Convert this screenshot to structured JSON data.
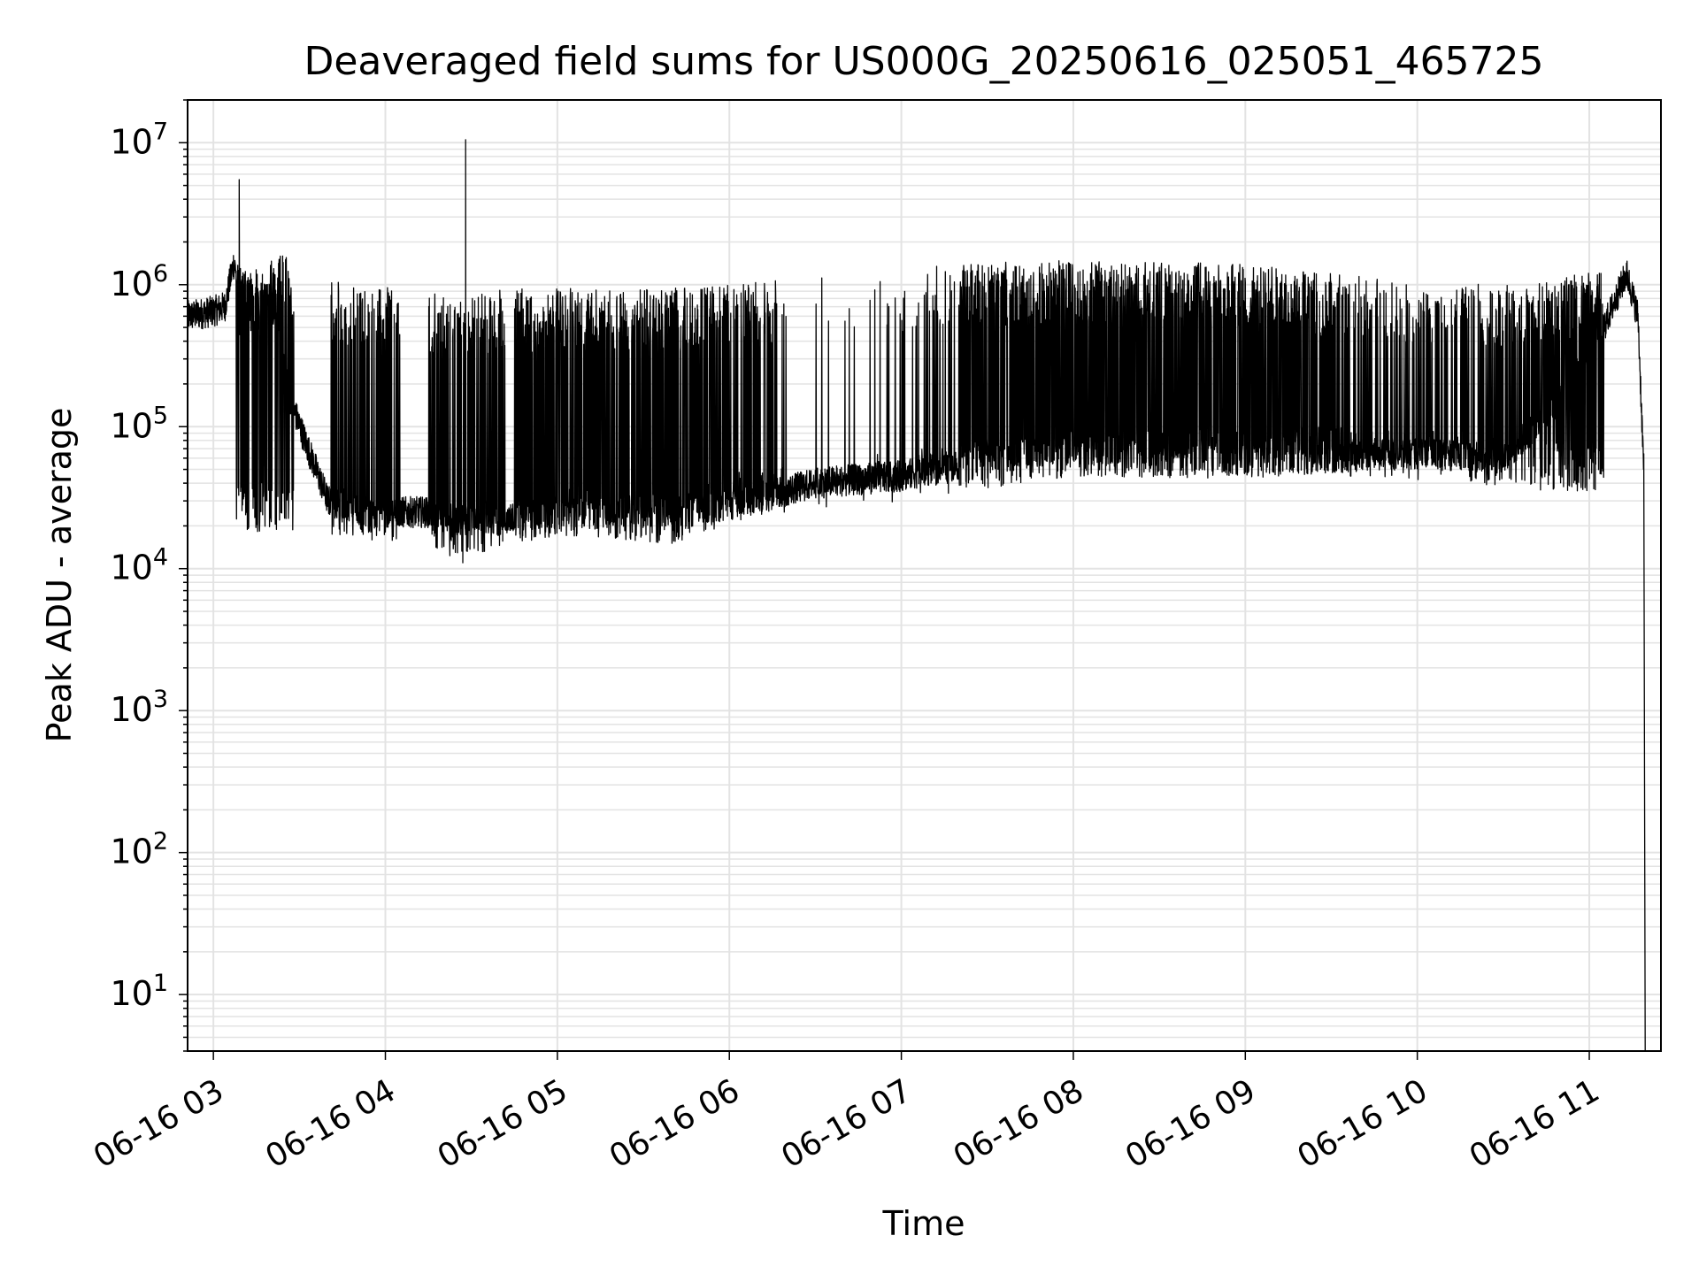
{
  "chart_data": {
    "type": "line",
    "title": "Deaveraged field sums for US000G_20250616_025051_465725",
    "xlabel": "Time",
    "ylabel": "Peak ADU - average",
    "yscale": "log",
    "ylim": [
      4,
      20000000
    ],
    "xlim": [
      "2025-06-16T02:51:00",
      "2025-06-16T11:25:00"
    ],
    "grid": true,
    "x_ticks": [
      {
        "t": "2025-06-16T03:00:00",
        "label": "06-16 03"
      },
      {
        "t": "2025-06-16T04:00:00",
        "label": "06-16 04"
      },
      {
        "t": "2025-06-16T05:00:00",
        "label": "06-16 05"
      },
      {
        "t": "2025-06-16T06:00:00",
        "label": "06-16 06"
      },
      {
        "t": "2025-06-16T07:00:00",
        "label": "06-16 07"
      },
      {
        "t": "2025-06-16T08:00:00",
        "label": "06-16 08"
      },
      {
        "t": "2025-06-16T09:00:00",
        "label": "06-16 09"
      },
      {
        "t": "2025-06-16T10:00:00",
        "label": "06-16 10"
      },
      {
        "t": "2025-06-16T11:00:00",
        "label": "06-16 11"
      }
    ],
    "y_ticks": [
      {
        "value": 10,
        "base": "10",
        "exp": "1"
      },
      {
        "value": 100,
        "base": "10",
        "exp": "2"
      },
      {
        "value": 1000,
        "base": "10",
        "exp": "3"
      },
      {
        "value": 10000,
        "base": "10",
        "exp": "4"
      },
      {
        "value": 100000,
        "base": "10",
        "exp": "5"
      },
      {
        "value": 1000000,
        "base": "10",
        "exp": "6"
      },
      {
        "value": 10000000,
        "base": "10",
        "exp": "7"
      }
    ],
    "series": [
      {
        "color": "#000000",
        "baseline": [
          {
            "t": "2025-06-16T02:51:00",
            "y": 600000
          },
          {
            "t": "2025-06-16T03:00:00",
            "y": 650000
          },
          {
            "t": "2025-06-16T03:04:00",
            "y": 700000
          },
          {
            "t": "2025-06-16T03:07:00",
            "y": 1400000
          },
          {
            "t": "2025-06-16T03:12:00",
            "y": 900000
          },
          {
            "t": "2025-06-16T03:20:00",
            "y": 800000
          },
          {
            "t": "2025-06-16T03:27:00",
            "y": 150000
          },
          {
            "t": "2025-06-16T03:33:00",
            "y": 70000
          },
          {
            "t": "2025-06-16T03:40:00",
            "y": 30000
          },
          {
            "t": "2025-06-16T03:55:00",
            "y": 25000
          },
          {
            "t": "2025-06-16T04:15:00",
            "y": 25000
          },
          {
            "t": "2025-06-16T04:25:00",
            "y": 22000
          },
          {
            "t": "2025-06-16T04:40:00",
            "y": 22000
          },
          {
            "t": "2025-06-16T05:00:00",
            "y": 25000
          },
          {
            "t": "2025-06-16T05:30:00",
            "y": 25000
          },
          {
            "t": "2025-06-16T06:00:00",
            "y": 28000
          },
          {
            "t": "2025-06-16T06:30:00",
            "y": 40000
          },
          {
            "t": "2025-06-16T07:00:00",
            "y": 45000
          },
          {
            "t": "2025-06-16T07:30:00",
            "y": 60000
          },
          {
            "t": "2025-06-16T08:00:00",
            "y": 70000
          },
          {
            "t": "2025-06-16T08:40:00",
            "y": 60000
          },
          {
            "t": "2025-06-16T09:30:00",
            "y": 60000
          },
          {
            "t": "2025-06-16T10:00:00",
            "y": 65000
          },
          {
            "t": "2025-06-16T10:30:00",
            "y": 60000
          },
          {
            "t": "2025-06-16T10:50:00",
            "y": 150000
          },
          {
            "t": "2025-06-16T11:05:00",
            "y": 500000
          },
          {
            "t": "2025-06-16T11:13:00",
            "y": 1200000
          },
          {
            "t": "2025-06-16T11:17:00",
            "y": 600000
          },
          {
            "t": "2025-06-16T11:19:00",
            "y": 50000
          },
          {
            "t": "2025-06-16T11:19:30",
            "y": 4
          }
        ],
        "peak_band": [
          {
            "t": "2025-06-16T03:00:00",
            "y": 900000
          },
          {
            "t": "2025-06-16T03:25:00",
            "y": 1700000
          },
          {
            "t": "2025-06-16T03:40:00",
            "y": 1100000
          },
          {
            "t": "2025-06-16T04:15:00",
            "y": 900000
          },
          {
            "t": "2025-06-16T05:00:00",
            "y": 950000
          },
          {
            "t": "2025-06-16T05:50:00",
            "y": 950000
          },
          {
            "t": "2025-06-16T06:30:00",
            "y": 1200000
          },
          {
            "t": "2025-06-16T07:20:00",
            "y": 1400000
          },
          {
            "t": "2025-06-16T08:00:00",
            "y": 1500000
          },
          {
            "t": "2025-06-16T09:00:00",
            "y": 1400000
          },
          {
            "t": "2025-06-16T09:30:00",
            "y": 1200000
          },
          {
            "t": "2025-06-16T10:30:00",
            "y": 1000000
          },
          {
            "t": "2025-06-16T11:10:00",
            "y": 1300000
          }
        ],
        "low_band": [
          {
            "t": "2025-06-16T03:35:00",
            "y": 18000
          },
          {
            "t": "2025-06-16T04:10:00",
            "y": 14000
          },
          {
            "t": "2025-06-16T04:25:00",
            "y": 12000
          },
          {
            "t": "2025-06-16T05:00:00",
            "y": 17000
          },
          {
            "t": "2025-06-16T05:40:00",
            "y": 15000
          },
          {
            "t": "2025-06-16T06:05:00",
            "y": 22000
          },
          {
            "t": "2025-06-16T07:00:00",
            "y": 30000
          },
          {
            "t": "2025-06-16T08:00:00",
            "y": 45000
          },
          {
            "t": "2025-06-16T08:40:00",
            "y": 43000
          },
          {
            "t": "2025-06-16T09:30:00",
            "y": 45000
          },
          {
            "t": "2025-06-16T10:20:00",
            "y": 40000
          },
          {
            "t": "2025-06-16T10:40:00",
            "y": 35000
          }
        ],
        "spikes": [
          {
            "t": "2025-06-16T03:09:00",
            "y": 5500000
          },
          {
            "t": "2025-06-16T04:28:00",
            "y": 10500000
          },
          {
            "t": "2025-06-16T04:27:00",
            "y": 11000
          }
        ],
        "active_windows": [
          {
            "start": "2025-06-16T03:08:00",
            "end": "2025-06-16T03:28:00",
            "density": 0.6
          },
          {
            "start": "2025-06-16T03:41:00",
            "end": "2025-06-16T04:05:00",
            "density": 0.55
          },
          {
            "start": "2025-06-16T04:15:00",
            "end": "2025-06-16T04:42:00",
            "density": 0.55
          },
          {
            "start": "2025-06-16T04:45:00",
            "end": "2025-06-16T06:00:00",
            "density": 0.75
          },
          {
            "start": "2025-06-16T06:00:00",
            "end": "2025-06-16T06:20:00",
            "density": 0.4
          },
          {
            "start": "2025-06-16T06:30:00",
            "end": "2025-06-16T07:00:00",
            "density": 0.12
          },
          {
            "start": "2025-06-16T07:00:00",
            "end": "2025-06-16T07:20:00",
            "density": 0.2
          },
          {
            "start": "2025-06-16T07:20:00",
            "end": "2025-06-16T09:30:00",
            "density": 0.8
          },
          {
            "start": "2025-06-16T09:30:00",
            "end": "2025-06-16T10:00:00",
            "density": 0.35
          },
          {
            "start": "2025-06-16T10:00:00",
            "end": "2025-06-16T10:40:00",
            "density": 0.4
          },
          {
            "start": "2025-06-16T10:40:00",
            "end": "2025-06-16T11:05:00",
            "density": 0.7
          }
        ]
      }
    ]
  }
}
